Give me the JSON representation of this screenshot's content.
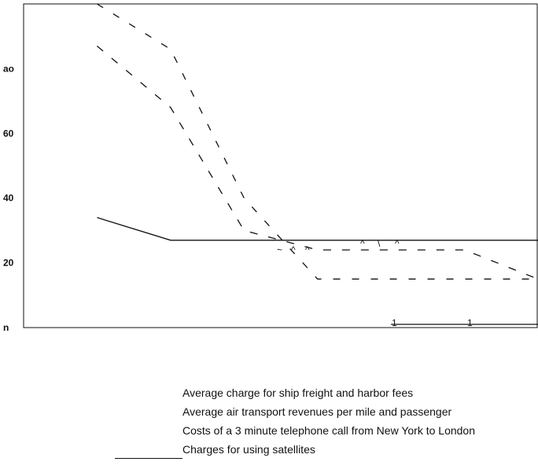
{
  "chart_data": {
    "type": "line",
    "x": [
      1930,
      1940,
      1950,
      1960,
      1970,
      1980,
      1990
    ],
    "xlim": [
      1920,
      1990
    ],
    "ylim": [
      0,
      100
    ],
    "y_ticks": [
      {
        "value": 0,
        "label": "n"
      },
      {
        "value": 20,
        "label": "20"
      },
      {
        "value": 40,
        "label": "40"
      },
      {
        "value": 60,
        "label": "60"
      },
      {
        "value": 80,
        "label": "ao"
      }
    ],
    "series": [
      {
        "name": "Average charge for ship freight and harbor fees",
        "x": [
          1930,
          1940,
          1950,
          1960,
          1970,
          1980,
          1990
        ],
        "values": [
          34,
          27,
          27,
          27,
          27,
          27,
          27
        ]
      },
      {
        "name": "Average air transport revenues per mile and passenger",
        "x": [
          1930,
          1940,
          1950,
          1960,
          1970,
          1980,
          1990
        ],
        "values": [
          87,
          68,
          30,
          24,
          24,
          24,
          15
        ]
      },
      {
        "name": "Costs of a 3 minute telephone call from New York to London",
        "x": [
          1930,
          1940,
          1950,
          1960,
          1970,
          1980,
          1990
        ],
        "values": [
          100,
          86,
          40,
          15,
          15,
          15,
          15
        ]
      },
      {
        "name": "Charges for using satellites",
        "x": [
          1970,
          1980,
          1990
        ],
        "values": [
          1,
          1,
          1
        ]
      }
    ],
    "stray_marks": {
      "freight_row": [
        "~",
        "^",
        "^"
      ],
      "air_row": [
        "^",
        "\\",
        "^"
      ],
      "satellite_row": [
        "1",
        "1"
      ]
    },
    "legend_placement": "bottom",
    "grid": false
  }
}
